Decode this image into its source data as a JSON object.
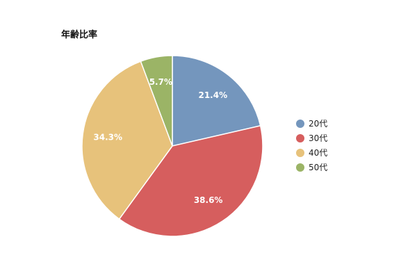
{
  "chart_data": {
    "type": "pie",
    "title": "年齢比率",
    "categories": [
      "20代",
      "30代",
      "40代",
      "50代"
    ],
    "values": [
      21.4,
      38.6,
      34.3,
      5.7
    ],
    "value_labels": [
      "21.4%",
      "38.6%",
      "34.3%",
      "5.7%"
    ],
    "colors": [
      "#7496bd",
      "#d65e5e",
      "#e7c27b",
      "#9bb466"
    ],
    "legend_position": "right",
    "start": "top",
    "direction": "clockwise"
  }
}
